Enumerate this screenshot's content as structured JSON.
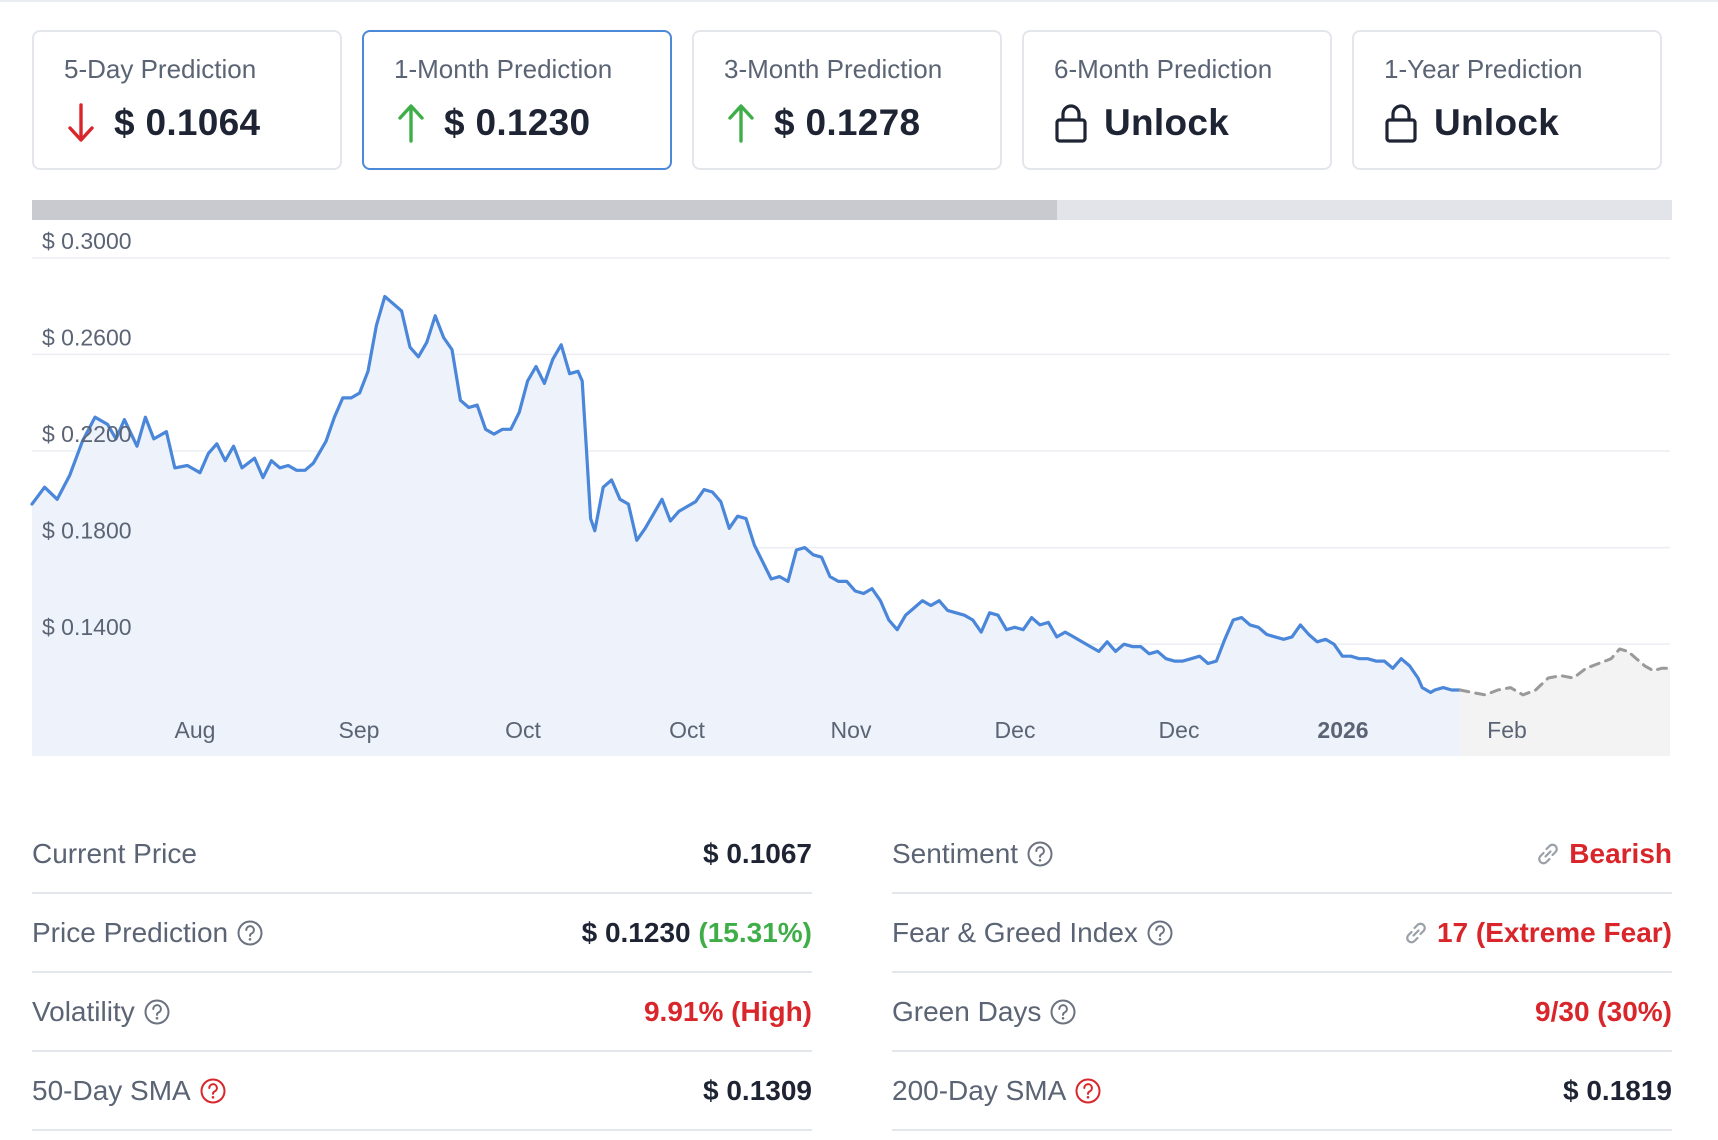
{
  "cards": [
    {
      "label": "5-Day Prediction",
      "value": "$ 0.1064",
      "icon": "arrow-down-icon",
      "icon_color": "#d9262b",
      "active": false
    },
    {
      "label": "1-Month Prediction",
      "value": "$ 0.1230",
      "icon": "arrow-up-icon",
      "icon_color": "#3fae49",
      "active": true
    },
    {
      "label": "3-Month Prediction",
      "value": "$ 0.1278",
      "icon": "arrow-up-icon",
      "icon_color": "#3fae49",
      "active": false
    },
    {
      "label": "6-Month Prediction",
      "value": "Unlock",
      "icon": "lock-icon",
      "icon_color": "#1e2433",
      "active": false
    },
    {
      "label": "1-Year Prediction",
      "value": "Unlock",
      "icon": "lock-icon",
      "icon_color": "#1e2433",
      "active": false
    }
  ],
  "range_selector": {
    "fill_fraction": 0.625
  },
  "chart_data": {
    "type": "line",
    "x_tick_labels": [
      "Aug",
      "Sep",
      "Oct",
      "Oct",
      "Nov",
      "Dec",
      "Dec",
      "2026",
      "Feb"
    ],
    "bold_tick_labels": [
      "2026"
    ],
    "y_tick_labels": [
      "$ 0.3000",
      "$ 0.2600",
      "$ 0.2200",
      "$ 0.1800",
      "$ 0.1400"
    ],
    "ylim": [
      0.097,
      0.302
    ],
    "grid": true,
    "series": [
      {
        "style": "solid",
        "color": "#4a86d9",
        "fill": "#eef3fb",
        "points": [
          [
            0,
            0.198
          ],
          [
            3,
            0.205
          ],
          [
            6,
            0.2
          ],
          [
            9,
            0.21
          ],
          [
            12,
            0.224
          ],
          [
            15,
            0.234
          ],
          [
            18,
            0.231
          ],
          [
            20,
            0.225
          ],
          [
            22,
            0.233
          ],
          [
            25,
            0.222
          ],
          [
            27,
            0.234
          ],
          [
            29,
            0.225
          ],
          [
            32,
            0.228
          ],
          [
            34,
            0.213
          ],
          [
            37,
            0.214
          ],
          [
            40,
            0.211
          ],
          [
            42,
            0.219
          ],
          [
            44,
            0.223
          ],
          [
            46,
            0.216
          ],
          [
            48,
            0.222
          ],
          [
            50,
            0.213
          ],
          [
            53,
            0.217
          ],
          [
            55,
            0.209
          ],
          [
            57,
            0.216
          ],
          [
            59,
            0.213
          ],
          [
            61,
            0.214
          ],
          [
            63,
            0.212
          ],
          [
            65,
            0.212
          ],
          [
            67,
            0.215
          ],
          [
            70,
            0.224
          ],
          [
            72,
            0.234
          ],
          [
            74,
            0.242
          ],
          [
            76,
            0.242
          ],
          [
            78,
            0.244
          ],
          [
            80,
            0.253
          ],
          [
            82,
            0.272
          ],
          [
            84,
            0.284
          ],
          [
            86,
            0.281
          ],
          [
            88,
            0.278
          ],
          [
            90,
            0.263
          ],
          [
            92,
            0.259
          ],
          [
            94,
            0.265
          ],
          [
            96,
            0.276
          ],
          [
            98,
            0.267
          ],
          [
            100,
            0.262
          ],
          [
            102,
            0.241
          ],
          [
            104,
            0.238
          ],
          [
            106,
            0.239
          ],
          [
            108,
            0.229
          ],
          [
            110,
            0.227
          ],
          [
            112,
            0.229
          ],
          [
            114,
            0.229
          ],
          [
            116,
            0.236
          ],
          [
            118,
            0.249
          ],
          [
            120,
            0.255
          ],
          [
            122,
            0.248
          ],
          [
            124,
            0.258
          ],
          [
            126,
            0.264
          ],
          [
            128,
            0.252
          ],
          [
            130,
            0.253
          ],
          [
            131,
            0.249
          ],
          [
            132,
            0.221
          ],
          [
            133,
            0.192
          ],
          [
            134,
            0.187
          ],
          [
            136,
            0.205
          ],
          [
            138,
            0.208
          ],
          [
            140,
            0.2
          ],
          [
            142,
            0.198
          ],
          [
            144,
            0.183
          ],
          [
            146,
            0.188
          ],
          [
            148,
            0.194
          ],
          [
            150,
            0.2
          ],
          [
            152,
            0.191
          ],
          [
            154,
            0.195
          ],
          [
            156,
            0.197
          ],
          [
            158,
            0.199
          ],
          [
            160,
            0.204
          ],
          [
            162,
            0.203
          ],
          [
            164,
            0.199
          ],
          [
            166,
            0.188
          ],
          [
            168,
            0.193
          ],
          [
            170,
            0.192
          ],
          [
            172,
            0.181
          ],
          [
            174,
            0.174
          ],
          [
            176,
            0.167
          ],
          [
            178,
            0.168
          ],
          [
            180,
            0.166
          ],
          [
            182,
            0.179
          ],
          [
            184,
            0.18
          ],
          [
            186,
            0.177
          ],
          [
            188,
            0.176
          ],
          [
            190,
            0.168
          ],
          [
            192,
            0.166
          ],
          [
            194,
            0.166
          ],
          [
            196,
            0.162
          ],
          [
            198,
            0.161
          ],
          [
            200,
            0.163
          ],
          [
            202,
            0.158
          ],
          [
            204,
            0.15
          ],
          [
            206,
            0.146
          ],
          [
            208,
            0.152
          ],
          [
            210,
            0.155
          ],
          [
            212,
            0.158
          ],
          [
            214,
            0.156
          ],
          [
            216,
            0.158
          ],
          [
            218,
            0.154
          ],
          [
            220,
            0.153
          ],
          [
            222,
            0.152
          ],
          [
            224,
            0.15
          ],
          [
            226,
            0.145
          ],
          [
            228,
            0.153
          ],
          [
            230,
            0.152
          ],
          [
            232,
            0.146
          ],
          [
            234,
            0.147
          ],
          [
            236,
            0.146
          ],
          [
            238,
            0.151
          ],
          [
            240,
            0.148
          ],
          [
            242,
            0.149
          ],
          [
            244,
            0.143
          ],
          [
            246,
            0.145
          ],
          [
            248,
            0.143
          ],
          [
            250,
            0.141
          ],
          [
            252,
            0.139
          ],
          [
            254,
            0.137
          ],
          [
            256,
            0.141
          ],
          [
            258,
            0.137
          ],
          [
            260,
            0.14
          ],
          [
            262,
            0.139
          ],
          [
            264,
            0.139
          ],
          [
            266,
            0.136
          ],
          [
            268,
            0.137
          ],
          [
            270,
            0.134
          ],
          [
            272,
            0.133
          ],
          [
            274,
            0.133
          ],
          [
            276,
            0.134
          ],
          [
            278,
            0.135
          ],
          [
            280,
            0.132
          ],
          [
            282,
            0.133
          ],
          [
            284,
            0.142
          ],
          [
            286,
            0.15
          ],
          [
            288,
            0.151
          ],
          [
            290,
            0.148
          ],
          [
            292,
            0.147
          ],
          [
            294,
            0.144
          ],
          [
            296,
            0.143
          ],
          [
            298,
            0.142
          ],
          [
            300,
            0.143
          ],
          [
            302,
            0.148
          ],
          [
            304,
            0.144
          ],
          [
            306,
            0.141
          ],
          [
            308,
            0.142
          ],
          [
            310,
            0.14
          ],
          [
            312,
            0.135
          ],
          [
            314,
            0.135
          ],
          [
            316,
            0.134
          ],
          [
            318,
            0.134
          ],
          [
            320,
            0.133
          ],
          [
            322,
            0.133
          ],
          [
            324,
            0.13
          ],
          [
            326,
            0.134
          ],
          [
            328,
            0.131
          ],
          [
            330,
            0.126
          ],
          [
            331,
            0.122
          ],
          [
            332,
            0.121
          ],
          [
            333,
            0.12
          ],
          [
            334,
            0.121
          ],
          [
            336,
            0.122
          ],
          [
            338,
            0.121
          ],
          [
            340,
            0.121
          ]
        ]
      },
      {
        "style": "dashed",
        "color": "#9a9a9a",
        "fill": "#f3f3f3",
        "points": [
          [
            340,
            0.121
          ],
          [
            343,
            0.12
          ],
          [
            346,
            0.119
          ],
          [
            349,
            0.121
          ],
          [
            352,
            0.122
          ],
          [
            355,
            0.119
          ],
          [
            358,
            0.121
          ],
          [
            361,
            0.126
          ],
          [
            364,
            0.127
          ],
          [
            367,
            0.126
          ],
          [
            370,
            0.13
          ],
          [
            373,
            0.132
          ],
          [
            376,
            0.134
          ],
          [
            378,
            0.138
          ],
          [
            380,
            0.137
          ],
          [
            382,
            0.134
          ],
          [
            384,
            0.131
          ],
          [
            386,
            0.129
          ],
          [
            388,
            0.13
          ],
          [
            390,
            0.13
          ]
        ]
      }
    ]
  },
  "stats_left": [
    {
      "label": "Current Price",
      "value": "$ 0.1067",
      "help": false
    },
    {
      "label": "Price Prediction",
      "value": "$ 0.1230",
      "value_extra": "(15.31%)",
      "help": true,
      "help_color": "#6b7280"
    },
    {
      "label": "Volatility",
      "value": "9.91% (High)",
      "value_color": "red",
      "help": true,
      "help_color": "#6b7280"
    },
    {
      "label": "50-Day SMA",
      "value": "$ 0.1309",
      "help": true,
      "help_color": "#d9262b"
    }
  ],
  "stats_right": [
    {
      "label": "Sentiment",
      "value": "Bearish",
      "value_color": "red",
      "help": true,
      "help_color": "#6b7280",
      "link_icon": true
    },
    {
      "label": "Fear & Greed Index",
      "value": "17 (Extreme Fear)",
      "value_color": "red",
      "help": true,
      "help_color": "#6b7280",
      "link_icon": true
    },
    {
      "label": "Green Days",
      "value": "9/30 (30%)",
      "value_color": "red",
      "help": true,
      "help_color": "#6b7280"
    },
    {
      "label": "200-Day SMA",
      "value": "$ 0.1819",
      "help": true,
      "help_color": "#d9262b"
    }
  ]
}
